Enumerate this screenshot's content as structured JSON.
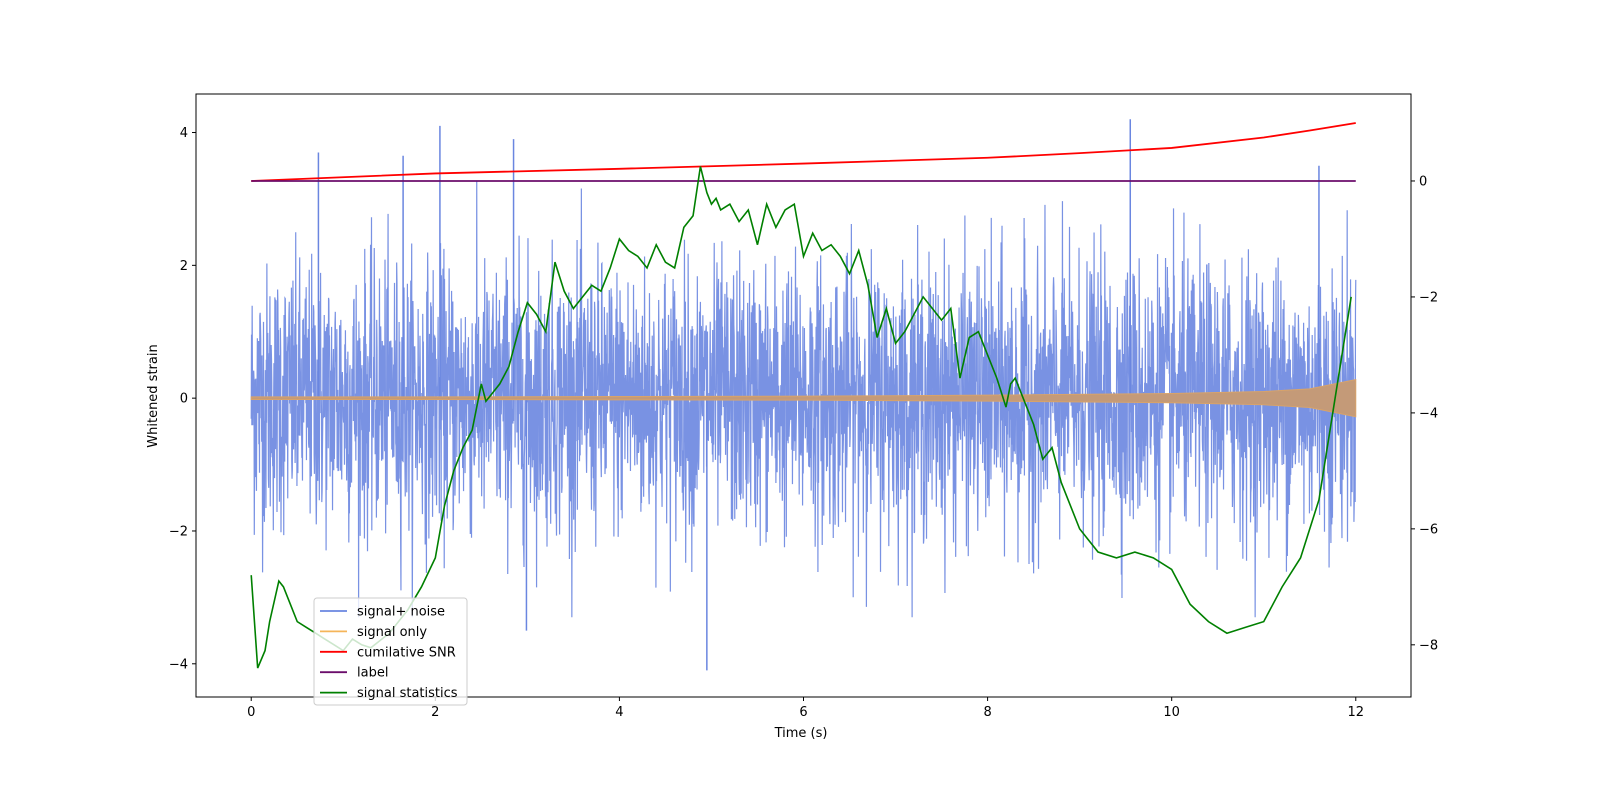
{
  "chart_data": {
    "type": "line",
    "xlabel": "Time (s)",
    "ylabel": "Whitened strain",
    "xlim": [
      -0.6,
      12.6
    ],
    "ylim": [
      -4.5,
      4.58
    ],
    "y2lim": [
      -8.9,
      1.5
    ],
    "xticks": [
      0,
      2,
      4,
      6,
      8,
      10,
      12
    ],
    "xtick_labels": [
      "0",
      "2",
      "4",
      "6",
      "8",
      "10",
      "12"
    ],
    "yticks": [
      -4,
      -2,
      0,
      2,
      4
    ],
    "ytick_labels": [
      "−4",
      "−2",
      "0",
      "2",
      "4"
    ],
    "y2ticks": [
      -8,
      -6,
      -4,
      -2,
      0
    ],
    "y2tick_labels": [
      "−8",
      "−6",
      "−4",
      "−2",
      "0"
    ],
    "legend_position": "lower-left",
    "legend": [
      {
        "label": "signal+ noise",
        "color": "#6a86e0"
      },
      {
        "label": "signal only",
        "color": "#f5b55a"
      },
      {
        "label": "cumilative SNR",
        "color": "#ff0000"
      },
      {
        "label": "label",
        "color": "#6b0d6b"
      },
      {
        "label": "signal statistics",
        "color": "#008000"
      }
    ],
    "series": [
      {
        "name": "signal+ noise",
        "axis": "left",
        "color": "#6a86e0",
        "description": "whitened noise plus signal, roughly gaussian, std ~1, spanning t = 0 to 12 s",
        "x_range": [
          0,
          12
        ],
        "approx_std": 1.0,
        "spikes": [
          {
            "x": 0.73,
            "y": 3.7
          },
          {
            "x": 1.65,
            "y": 3.65
          },
          {
            "x": 2.05,
            "y": 4.1
          },
          {
            "x": 2.85,
            "y": 3.9
          },
          {
            "x": 4.95,
            "y": -4.1
          },
          {
            "x": 9.55,
            "y": 4.2
          },
          {
            "x": 11.6,
            "y": 3.5
          },
          {
            "x": 2.99,
            "y": -3.5
          }
        ]
      },
      {
        "name": "signal only",
        "axis": "left",
        "color": "#f5b55a",
        "description": "chirp signal envelope growing from ~0.02 to ~0.28 amplitude",
        "x": [
          0,
          2,
          4,
          6,
          8,
          10,
          11,
          11.5,
          12
        ],
        "envelope": [
          0.02,
          0.02,
          0.025,
          0.03,
          0.045,
          0.07,
          0.1,
          0.14,
          0.28
        ]
      },
      {
        "name": "cumilative SNR",
        "axis": "right",
        "color": "#ff0000",
        "x": [
          0,
          2,
          4,
          6,
          8,
          9,
          10,
          11,
          11.5,
          12
        ],
        "y": [
          0,
          0.13,
          0.21,
          0.3,
          0.4,
          0.48,
          0.57,
          0.75,
          0.87,
          1.0
        ]
      },
      {
        "name": "label",
        "axis": "right",
        "color": "#6b0d6b",
        "x": [
          0,
          12
        ],
        "y": [
          0,
          0
        ]
      },
      {
        "name": "signal statistics",
        "axis": "right",
        "color": "#008000",
        "x": [
          0.0,
          0.07,
          0.15,
          0.2,
          0.3,
          0.35,
          0.4,
          0.5,
          0.6,
          0.7,
          0.8,
          0.9,
          1.0,
          1.1,
          1.2,
          1.3,
          1.5,
          1.7,
          1.85,
          2.0,
          2.1,
          2.2,
          2.3,
          2.4,
          2.5,
          2.55,
          2.6,
          2.7,
          2.8,
          2.9,
          3.0,
          3.1,
          3.2,
          3.3,
          3.4,
          3.5,
          3.6,
          3.7,
          3.8,
          3.9,
          4.0,
          4.1,
          4.2,
          4.3,
          4.4,
          4.5,
          4.6,
          4.7,
          4.8,
          4.88,
          4.95,
          5.0,
          5.05,
          5.1,
          5.2,
          5.3,
          5.4,
          5.5,
          5.6,
          5.7,
          5.8,
          5.9,
          6.0,
          6.1,
          6.2,
          6.3,
          6.4,
          6.5,
          6.6,
          6.7,
          6.8,
          6.9,
          7.0,
          7.1,
          7.2,
          7.3,
          7.4,
          7.5,
          7.6,
          7.7,
          7.8,
          7.9,
          8.0,
          8.1,
          8.2,
          8.25,
          8.3,
          8.4,
          8.5,
          8.6,
          8.7,
          8.8,
          9.0,
          9.2,
          9.4,
          9.6,
          9.8,
          10.0,
          10.2,
          10.4,
          10.6,
          10.8,
          11.0,
          11.2,
          11.4,
          11.6,
          11.8,
          11.95
        ],
        "y": [
          -6.8,
          -8.4,
          -8.1,
          -7.6,
          -6.9,
          -7.0,
          -7.2,
          -7.6,
          -7.7,
          -7.8,
          -7.9,
          -8.0,
          -8.1,
          -7.9,
          -8.0,
          -8.05,
          -7.8,
          -7.4,
          -7.0,
          -6.5,
          -5.6,
          -5.0,
          -4.6,
          -4.3,
          -3.5,
          -3.8,
          -3.7,
          -3.5,
          -3.2,
          -2.6,
          -2.1,
          -2.3,
          -2.6,
          -1.4,
          -1.9,
          -2.2,
          -2.0,
          -1.8,
          -1.9,
          -1.5,
          -1.0,
          -1.2,
          -1.3,
          -1.5,
          -1.1,
          -1.4,
          -1.5,
          -0.8,
          -0.6,
          0.25,
          -0.2,
          -0.4,
          -0.3,
          -0.5,
          -0.4,
          -0.7,
          -0.5,
          -1.1,
          -0.4,
          -0.8,
          -0.5,
          -0.4,
          -1.3,
          -0.9,
          -1.2,
          -1.1,
          -1.3,
          -1.6,
          -1.2,
          -1.8,
          -2.7,
          -2.2,
          -2.8,
          -2.6,
          -2.3,
          -2.0,
          -2.2,
          -2.4,
          -2.2,
          -3.4,
          -2.7,
          -2.6,
          -3.0,
          -3.4,
          -3.9,
          -3.5,
          -3.4,
          -3.8,
          -4.2,
          -4.8,
          -4.6,
          -5.2,
          -6.0,
          -6.4,
          -6.5,
          -6.4,
          -6.5,
          -6.7,
          -7.3,
          -7.6,
          -7.8,
          -7.7,
          -7.6,
          -7.0,
          -6.5,
          -5.5,
          -3.5,
          -2.0
        ]
      }
    ]
  }
}
